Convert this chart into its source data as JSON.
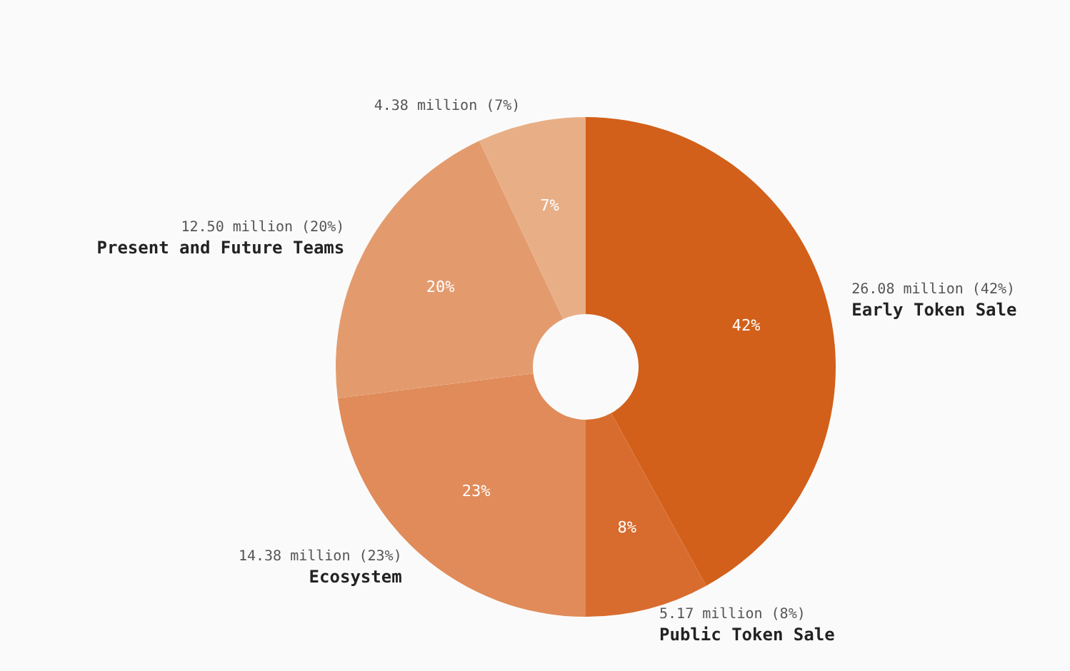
{
  "chart_data": {
    "type": "donut",
    "categories": [
      "Early Token Sale",
      "Public Token Sale",
      "Ecosystem",
      "Present and Future Teams",
      null
    ],
    "values": [
      42,
      8,
      23,
      20,
      7
    ],
    "colors": [
      "#d2601a",
      "#d86c2e",
      "#e08b59",
      "#e39b6e",
      "#e8af86"
    ],
    "value_labels": [
      "26.08 million (42%)",
      "5.17 million (8%)",
      "14.38 million (23%)",
      "12.50 million (20%)",
      "4.38 million (7%)"
    ],
    "annotations": [
      "42%",
      "8%",
      "23%",
      "20%",
      "7%"
    ],
    "legend": false
  }
}
